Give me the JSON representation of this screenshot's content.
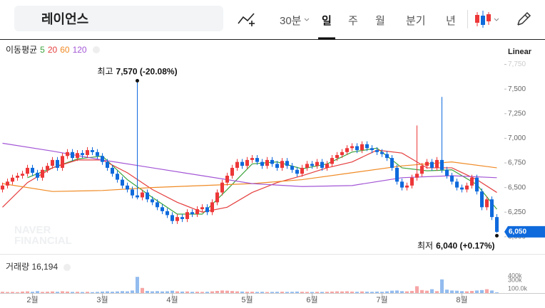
{
  "toolbar": {
    "search": "레이언스",
    "intervals": [
      "30분",
      "일",
      "주",
      "월",
      "분기",
      "년"
    ]
  },
  "chart_data": {
    "type": "candlestick",
    "scale_label": "Linear",
    "ma_title": "이동평균",
    "up_color": "#ed3738",
    "down_color": "#0f6adc",
    "xlim": [
      -0.5,
      100.5
    ],
    "xticks": [
      {
        "value": 6,
        "label": "2월"
      },
      {
        "value": 20,
        "label": "3월"
      },
      {
        "value": 34,
        "label": "4월"
      },
      {
        "value": 49,
        "label": "5월"
      },
      {
        "value": 62,
        "label": "6월"
      },
      {
        "value": 76,
        "label": "7월"
      },
      {
        "value": 92,
        "label": "8월"
      }
    ],
    "ylim": [
      5840,
      8000
    ],
    "yticks": [
      {
        "value": 7750,
        "label": "7,750"
      },
      {
        "value": 7500,
        "label": "7,500"
      },
      {
        "value": 7250,
        "label": "7,250"
      },
      {
        "value": 7000,
        "label": "7,000"
      },
      {
        "value": 6750,
        "label": "6,750"
      },
      {
        "value": 6500,
        "label": "6,500"
      },
      {
        "value": 6250,
        "label": "6,250"
      },
      {
        "value": 6000,
        "label": "6,000"
      }
    ],
    "grid": false,
    "open": [
      6480,
      6520,
      6560,
      6600,
      6620,
      6640,
      6700,
      6650,
      6600,
      6680,
      6720,
      6780,
      6700,
      6820,
      6860,
      6800,
      6850,
      6830,
      6880,
      6860,
      6820,
      6760,
      6700,
      6640,
      6580,
      6520,
      6480,
      6420,
      6400,
      6450,
      6380,
      6350,
      6300,
      6260,
      6220,
      6160,
      6200,
      6180,
      6250,
      6230,
      6280,
      6300,
      6250,
      6350,
      6450,
      6550,
      6620,
      6700,
      6760,
      6720,
      6780,
      6800,
      6760,
      6720,
      6780,
      6740,
      6700,
      6770,
      6720,
      6680,
      6640,
      6700,
      6740,
      6720,
      6760,
      6700,
      6740,
      6800,
      6830,
      6860,
      6900,
      6920,
      6880,
      6940,
      6900,
      6880,
      6860,
      6840,
      6800,
      6700,
      6560,
      6500,
      6520,
      6600,
      6640,
      6720,
      6760,
      6700,
      6780,
      6680,
      6620,
      6560,
      6500,
      6480,
      6520,
      6600,
      6460,
      6300,
      6380,
      6200
    ],
    "high": [
      6550,
      6590,
      6630,
      6650,
      6670,
      6730,
      6730,
      6680,
      6710,
      6750,
      6810,
      6810,
      6850,
      6890,
      6890,
      6880,
      6880,
      6910,
      6910,
      6890,
      6850,
      6790,
      6730,
      6670,
      6610,
      6550,
      6510,
      7570,
      6480,
      6480,
      6410,
      6380,
      6330,
      6290,
      6250,
      6230,
      6230,
      6280,
      6280,
      6310,
      6330,
      6330,
      6380,
      6480,
      6580,
      6650,
      6730,
      6790,
      6790,
      6810,
      6830,
      6830,
      6790,
      6810,
      6810,
      6770,
      6800,
      6800,
      6750,
      6710,
      6730,
      6770,
      6770,
      6790,
      6790,
      6770,
      6830,
      6860,
      6890,
      6930,
      6950,
      6950,
      6970,
      6970,
      6930,
      6910,
      6890,
      6870,
      6830,
      6730,
      6590,
      6550,
      6630,
      7130,
      6750,
      6790,
      6790,
      6810,
      7420,
      6710,
      6650,
      6590,
      6530,
      6550,
      6630,
      6630,
      6490,
      6410,
      6410,
      6230
    ],
    "low": [
      6450,
      6490,
      6530,
      6570,
      6590,
      6610,
      6620,
      6570,
      6570,
      6650,
      6690,
      6670,
      6670,
      6790,
      6770,
      6770,
      6800,
      6800,
      6830,
      6790,
      6730,
      6670,
      6610,
      6550,
      6490,
      6450,
      6390,
      6380,
      6370,
      6350,
      6320,
      6270,
      6230,
      6190,
      6130,
      6130,
      6150,
      6150,
      6200,
      6200,
      6250,
      6220,
      6220,
      6320,
      6420,
      6520,
      6590,
      6670,
      6690,
      6690,
      6750,
      6730,
      6690,
      6690,
      6710,
      6670,
      6670,
      6690,
      6650,
      6610,
      6610,
      6670,
      6690,
      6690,
      6670,
      6670,
      6710,
      6770,
      6800,
      6830,
      6870,
      6850,
      6850,
      6870,
      6850,
      6830,
      6810,
      6770,
      6670,
      6530,
      6470,
      6470,
      6490,
      6570,
      6610,
      6690,
      6670,
      6670,
      6650,
      6590,
      6530,
      6470,
      6450,
      6450,
      6490,
      6430,
      6270,
      6270,
      6170,
      6040
    ],
    "close": [
      6520,
      6560,
      6600,
      6620,
      6640,
      6700,
      6650,
      6600,
      6680,
      6720,
      6780,
      6700,
      6820,
      6860,
      6800,
      6850,
      6830,
      6880,
      6860,
      6820,
      6760,
      6700,
      6640,
      6580,
      6520,
      6480,
      6420,
      6400,
      6450,
      6380,
      6350,
      6300,
      6260,
      6220,
      6160,
      6200,
      6180,
      6250,
      6230,
      6280,
      6300,
      6250,
      6350,
      6450,
      6550,
      6620,
      6700,
      6760,
      6720,
      6780,
      6800,
      6760,
      6720,
      6780,
      6740,
      6700,
      6770,
      6720,
      6680,
      6640,
      6700,
      6740,
      6720,
      6760,
      6700,
      6740,
      6800,
      6830,
      6860,
      6900,
      6920,
      6880,
      6940,
      6900,
      6880,
      6860,
      6840,
      6800,
      6700,
      6560,
      6500,
      6520,
      6600,
      6640,
      6720,
      6760,
      6700,
      6780,
      6680,
      6620,
      6560,
      6500,
      6480,
      6520,
      6600,
      6460,
      6300,
      6380,
      6200,
      6050
    ],
    "volume": [
      30000,
      25000,
      28000,
      22000,
      35000,
      40000,
      30000,
      45000,
      28000,
      32000,
      38000,
      30000,
      42000,
      35000,
      28000,
      30000,
      25000,
      30000,
      22000,
      28000,
      35000,
      40000,
      32000,
      38000,
      45000,
      40000,
      60000,
      380000,
      120000,
      50000,
      40000,
      45000,
      38000,
      42000,
      55000,
      40000,
      35000,
      38000,
      30000,
      32000,
      28000,
      30000,
      40000,
      50000,
      60000,
      55000,
      48000,
      40000,
      35000,
      30000,
      32000,
      28000,
      30000,
      25000,
      28000,
      30000,
      32000,
      28000,
      30000,
      35000,
      30000,
      28000,
      26000,
      30000,
      28000,
      30000,
      35000,
      40000,
      38000,
      42000,
      35000,
      30000,
      38000,
      32000,
      30000,
      34000,
      30000,
      40000,
      55000,
      60000,
      45000,
      40000,
      50000,
      160000,
      70000,
      55000,
      90000,
      45000,
      320000,
      80000,
      60000,
      55000,
      45000,
      40000,
      50000,
      60000,
      70000,
      90000,
      60000,
      16194
    ],
    "volume_ylim": [
      0,
      450000
    ],
    "volume_ticks": [
      {
        "value": 400000,
        "label": "400k"
      },
      {
        "value": 300000,
        "label": "300k"
      },
      {
        "value": 100000,
        "label": "100.0k"
      }
    ],
    "volume_legend": "거래량 16,194",
    "moving_averages": [
      {
        "name": "5",
        "color": "#3ca33c",
        "x": [
          5,
          10,
          15,
          20,
          25,
          30,
          35,
          40,
          45,
          50,
          55,
          60,
          65,
          70,
          75,
          80,
          85,
          90,
          95,
          99
        ],
        "values": [
          6600,
          6700,
          6790,
          6820,
          6580,
          6400,
          6230,
          6230,
          6480,
          6740,
          6760,
          6690,
          6740,
          6860,
          6900,
          6700,
          6670,
          6680,
          6530,
          6280
        ]
      },
      {
        "name": "20",
        "color": "#e53d3d",
        "x": [
          0,
          5,
          10,
          15,
          20,
          25,
          30,
          35,
          40,
          45,
          50,
          55,
          60,
          65,
          70,
          75,
          80,
          85,
          90,
          95,
          99
        ],
        "values": [
          6300,
          6550,
          6700,
          6780,
          6780,
          6650,
          6480,
          6350,
          6250,
          6300,
          6450,
          6550,
          6620,
          6700,
          6760,
          6880,
          6850,
          6700,
          6700,
          6580,
          6450
        ]
      },
      {
        "name": "60",
        "color": "#f08a24",
        "x": [
          0,
          10,
          20,
          30,
          40,
          50,
          60,
          70,
          80,
          90,
          99
        ],
        "values": [
          6540,
          6460,
          6470,
          6500,
          6520,
          6540,
          6580,
          6650,
          6720,
          6760,
          6700
        ]
      },
      {
        "name": "120",
        "color": "#a356d6",
        "x": [
          0,
          10,
          20,
          30,
          40,
          50,
          60,
          70,
          80,
          90,
          99
        ],
        "values": [
          6950,
          6870,
          6780,
          6700,
          6620,
          6540,
          6510,
          6520,
          6600,
          6620,
          6600
        ]
      }
    ],
    "high_label": "최고",
    "high_value_label": "7,570 (-20.08%)",
    "low_label": "최저",
    "low_value_label": "6,040 (+0.17%)",
    "last_price_label": "6,050",
    "watermark": [
      "NAVER",
      "FINANCIAL"
    ]
  }
}
